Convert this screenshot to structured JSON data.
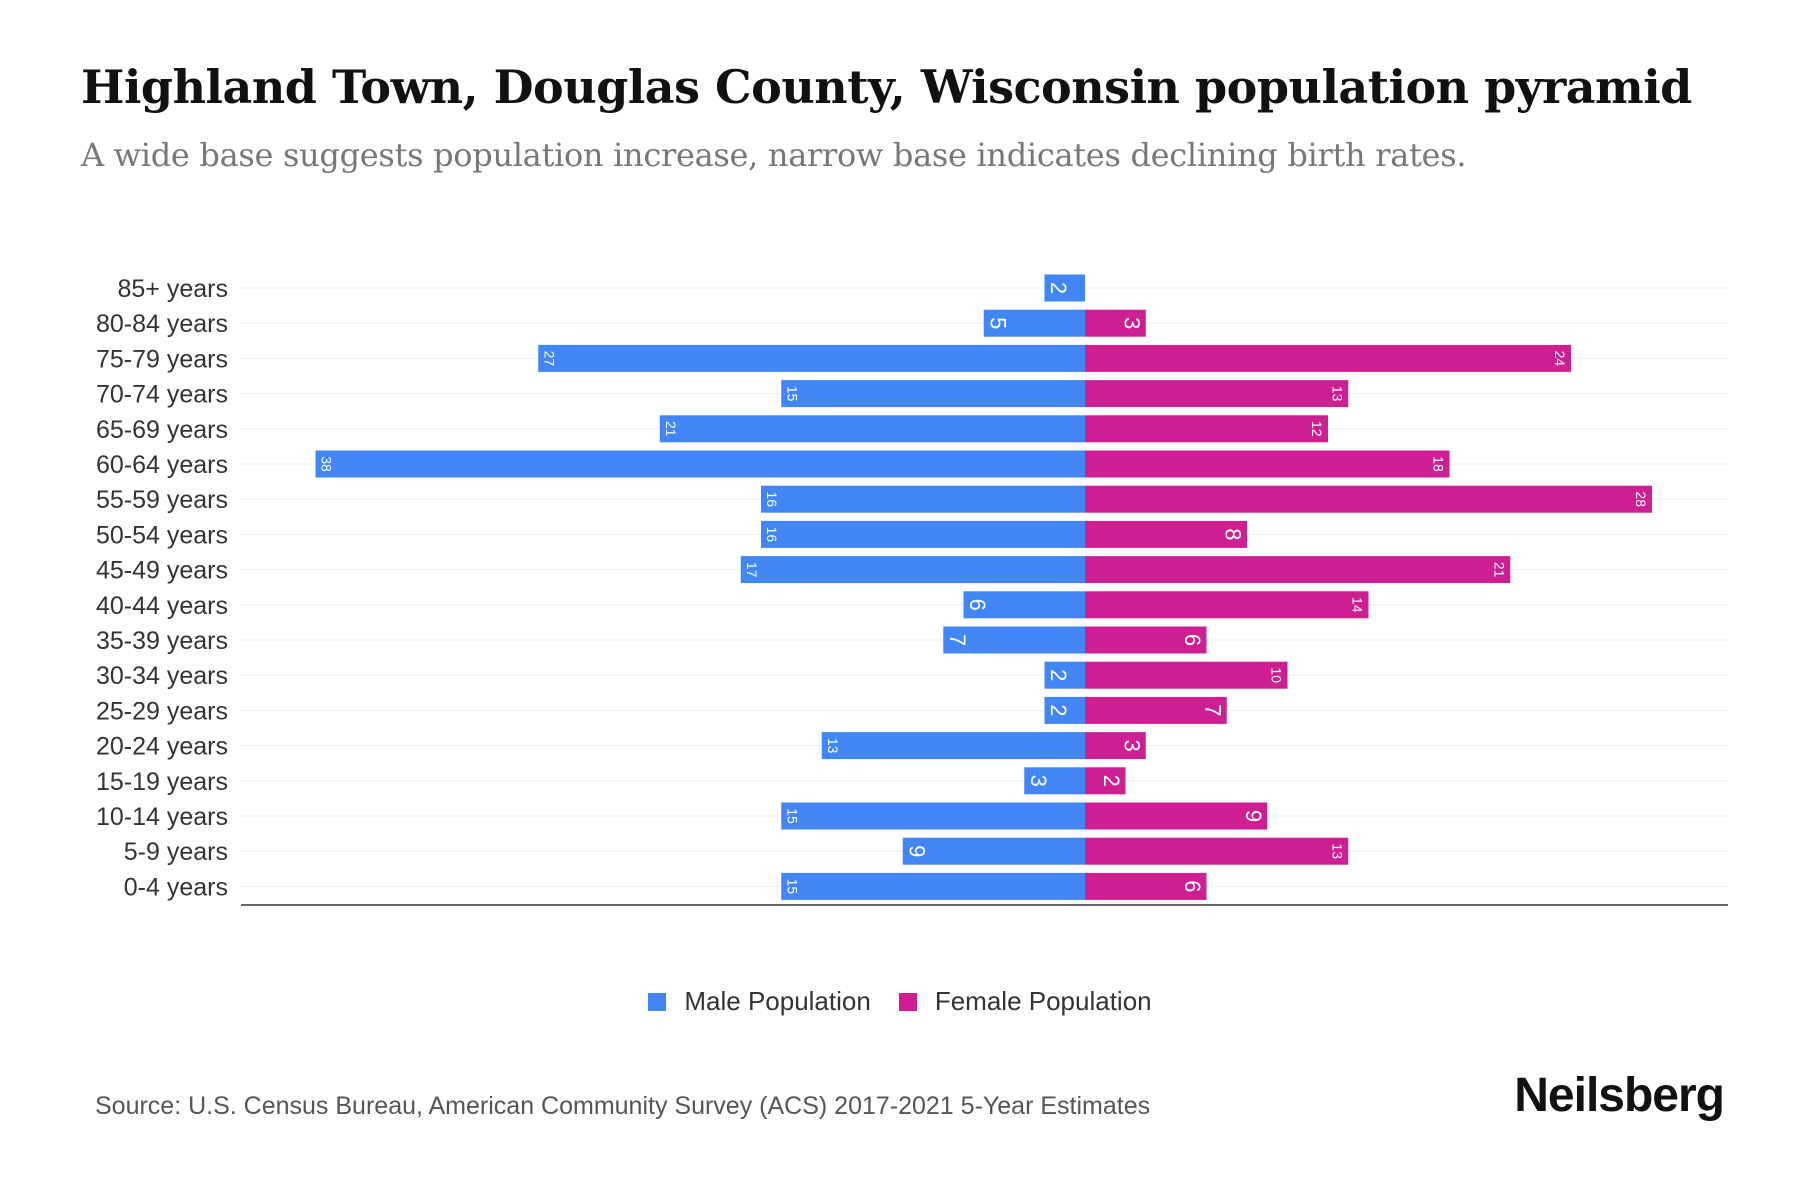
{
  "title": "Highland Town, Douglas County, Wisconsin population pyramid",
  "subtitle": "A wide base suggests population increase, narrow base indicates declining birth rates.",
  "source": "Source: U.S. Census Bureau, American Community Survey (ACS) 2017-2021 5-Year Estimates",
  "logo": "Neilsberg",
  "colors": {
    "male": "#4285f4",
    "female": "#cd1f92"
  },
  "chart_data": {
    "type": "bar",
    "orientation": "horizontal-pyramid",
    "categories": [
      "85+ years",
      "80-84 years",
      "75-79 years",
      "70-74 years",
      "65-69 years",
      "60-64 years",
      "55-59 years",
      "50-54 years",
      "45-49 years",
      "40-44 years",
      "35-39 years",
      "30-34 years",
      "25-29 years",
      "20-24 years",
      "15-19 years",
      "10-14 years",
      "5-9 years",
      "0-4 years"
    ],
    "series": [
      {
        "name": "Male Population",
        "values": [
          2,
          5,
          27,
          15,
          21,
          38,
          16,
          16,
          17,
          6,
          7,
          2,
          2,
          13,
          3,
          15,
          9,
          15
        ]
      },
      {
        "name": "Female Population",
        "values": [
          0,
          3,
          24,
          13,
          12,
          18,
          28,
          8,
          21,
          14,
          6,
          10,
          7,
          3,
          2,
          9,
          13,
          6
        ]
      }
    ],
    "legend_position": "bottom-center",
    "grid": true
  }
}
